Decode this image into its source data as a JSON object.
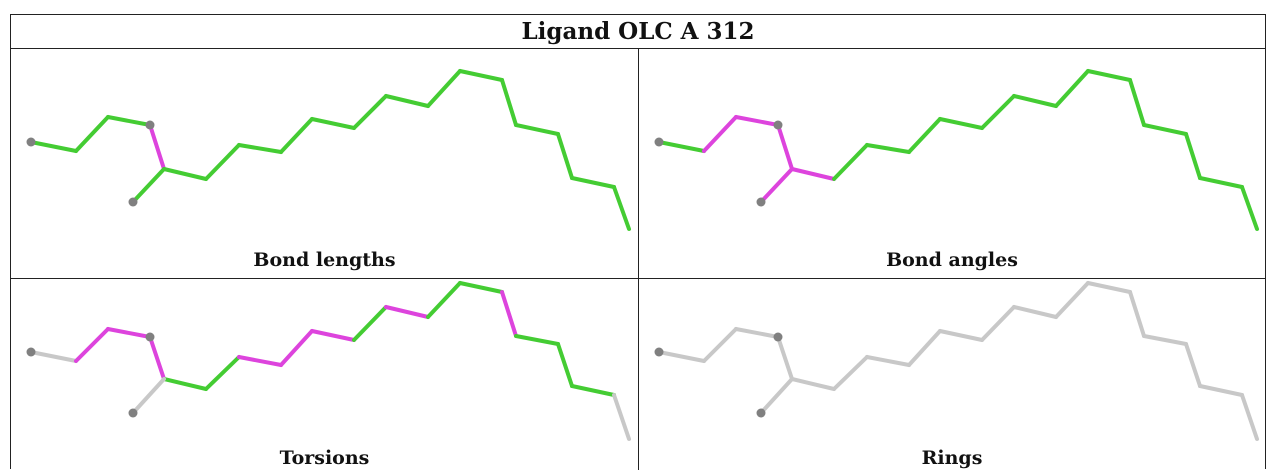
{
  "title": "Ligand OLC A 312",
  "panels": [
    {
      "caption": "Bond lengths"
    },
    {
      "caption": "Bond angles"
    },
    {
      "caption": "Torsions"
    },
    {
      "caption": "Rings"
    }
  ],
  "colors": {
    "green": "#44cc33",
    "magenta": "#dd44dd",
    "grey": "#c8c8c8",
    "atom": "#808080"
  }
}
